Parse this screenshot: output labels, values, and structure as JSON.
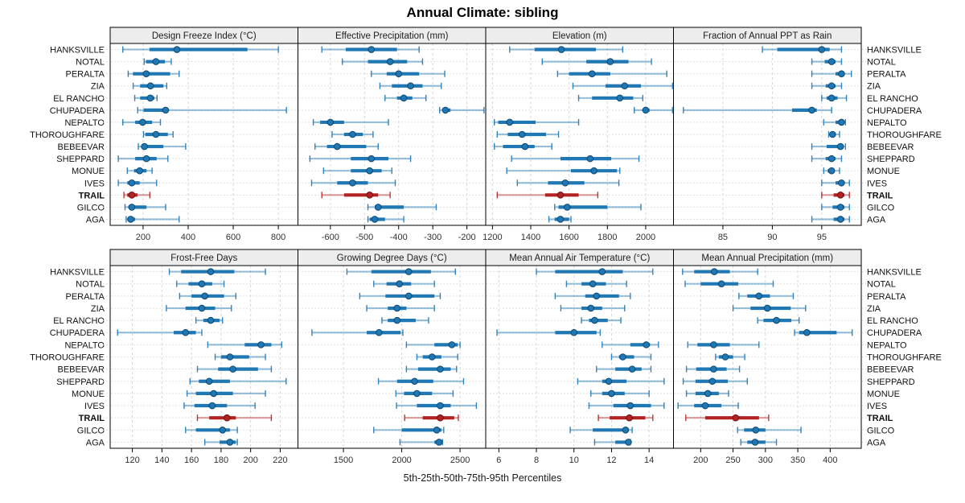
{
  "title": "Annual Climate: sibling",
  "caption": "5th-25th-50th-75th-95th Percentiles",
  "percentile_labels": [
    "5th",
    "25th",
    "50th",
    "75th",
    "95th"
  ],
  "stations": [
    "HANKSVILLE",
    "NOTAL",
    "PERALTA",
    "ZIA",
    "EL RANCHO",
    "CHUPADERA",
    "NEPALTO",
    "THOROUGHFARE",
    "BEBEEVAR",
    "SHEPPARD",
    "MONUE",
    "IVES",
    "TRAIL",
    "GILCO",
    "AGA"
  ],
  "highlight_station": "TRAIL",
  "colors": {
    "series_blue": "#1f77b4",
    "series_blue_light": "rgba(31,119,180,0.45)",
    "series_blue_dark": "#0d476f",
    "series_red": "#b22222",
    "series_red_light": "rgba(178,34,34,0.45)",
    "series_red_dark": "#6e1212",
    "strip_bg": "#ededed",
    "panel_border": "#000000",
    "grid": "#d6d6d6",
    "tick_text": "#303030",
    "label_text": "#111111"
  },
  "chart_data": [
    {
      "type": "interval-dotplot",
      "title": "Design Freeze Index (°C)",
      "row": 0,
      "col": 0,
      "xlim": [
        54,
        887
      ],
      "ticks": [
        200,
        400,
        600,
        800
      ],
      "values": [
        [
          110,
          228,
          350,
          663,
          800
        ],
        [
          205,
          213,
          257,
          297,
          325
        ],
        [
          134,
          155,
          214,
          320,
          360
        ],
        [
          156,
          187,
          233,
          290,
          305
        ],
        [
          163,
          187,
          232,
          250,
          262
        ],
        [
          176,
          202,
          300,
          312,
          836
        ],
        [
          110,
          165,
          198,
          240,
          277
        ],
        [
          202,
          210,
          257,
          310,
          333
        ],
        [
          179,
          192,
          206,
          290,
          389
        ],
        [
          90,
          165,
          215,
          260,
          310
        ],
        [
          130,
          160,
          185,
          215,
          240
        ],
        [
          90,
          130,
          150,
          185,
          260
        ],
        [
          115,
          130,
          150,
          175,
          230
        ],
        [
          120,
          135,
          150,
          215,
          300
        ],
        [
          125,
          132,
          145,
          165,
          360
        ]
      ]
    },
    {
      "type": "interval-dotplot",
      "title": "Effective Precipitation (mm)",
      "row": 0,
      "col": 1,
      "xlim": [
        -695,
        -145
      ],
      "ticks": [
        -600,
        -500,
        -400,
        -300,
        -200
      ],
      "values": [
        [
          -625,
          -555,
          -480,
          -405,
          -340
        ],
        [
          -565,
          -490,
          -425,
          -375,
          -330
        ],
        [
          -480,
          -435,
          -400,
          -340,
          -265
        ],
        [
          -455,
          -420,
          -365,
          -330,
          -275
        ],
        [
          -440,
          -405,
          -385,
          -360,
          -320
        ],
        [
          -280,
          -272,
          -263,
          -248,
          -150
        ],
        [
          -650,
          -630,
          -600,
          -560,
          -430
        ],
        [
          -595,
          -560,
          -535,
          -505,
          -475
        ],
        [
          -645,
          -610,
          -580,
          -495,
          -460
        ],
        [
          -660,
          -540,
          -480,
          -430,
          -365
        ],
        [
          -620,
          -540,
          -485,
          -450,
          -420
        ],
        [
          -655,
          -580,
          -535,
          -490,
          -410
        ],
        [
          -625,
          -560,
          -485,
          -460,
          -425
        ],
        [
          -490,
          -470,
          -460,
          -385,
          -290
        ],
        [
          -490,
          -485,
          -470,
          -440,
          -385
        ]
      ]
    },
    {
      "type": "interval-dotplot",
      "title": "Elevation (m)",
      "row": 0,
      "col": 2,
      "xlim": [
        1165,
        2145
      ],
      "ticks": [
        1200,
        1400,
        1600,
        1800,
        2000
      ],
      "values": [
        [
          1290,
          1420,
          1560,
          1740,
          1880
        ],
        [
          1460,
          1690,
          1815,
          1910,
          2030
        ],
        [
          1540,
          1600,
          1720,
          1815,
          2110
        ],
        [
          1620,
          1790,
          1890,
          1975,
          2140
        ],
        [
          1650,
          1720,
          1865,
          1935,
          1985
        ],
        [
          1940,
          1985,
          2000,
          2020,
          2140
        ],
        [
          1210,
          1230,
          1290,
          1425,
          1650
        ],
        [
          1225,
          1280,
          1355,
          1480,
          1545
        ],
        [
          1210,
          1255,
          1370,
          1420,
          1510
        ],
        [
          1300,
          1555,
          1710,
          1820,
          1965
        ],
        [
          1275,
          1610,
          1730,
          1850,
          1865
        ],
        [
          1330,
          1490,
          1580,
          1680,
          1860
        ],
        [
          1225,
          1475,
          1555,
          1650,
          1750
        ],
        [
          1525,
          1545,
          1590,
          1800,
          1975
        ],
        [
          1495,
          1525,
          1555,
          1600,
          1610
        ]
      ]
    },
    {
      "type": "interval-dotplot",
      "title": "Fraction of Annual PPT as Rain",
      "row": 0,
      "col": 3,
      "xlim": [
        80,
        99
      ],
      "ticks": [
        85,
        90,
        95
      ],
      "values": [
        [
          89,
          90.5,
          95,
          95.8,
          97
        ],
        [
          94,
          95.3,
          96,
          96.4,
          97
        ],
        [
          94,
          96.4,
          97,
          97.3,
          98
        ],
        [
          94,
          95.4,
          96,
          96.4,
          97
        ],
        [
          95,
          95.5,
          96,
          96.6,
          97.5
        ],
        [
          81,
          92,
          94,
          94.5,
          96
        ],
        [
          95.2,
          96.4,
          97,
          97.2,
          97.4
        ],
        [
          95.7,
          95.9,
          96.1,
          96.4,
          96.8
        ],
        [
          94,
          95.5,
          96.9,
          97.1,
          97.4
        ],
        [
          94,
          95.4,
          96,
          96.4,
          97
        ],
        [
          95.2,
          95.6,
          96,
          96.3,
          96.8
        ],
        [
          95,
          96.4,
          97,
          97.3,
          97.8
        ],
        [
          95,
          96.2,
          96.9,
          97.3,
          97.8
        ],
        [
          95,
          96.1,
          96.9,
          97.3,
          97.8
        ],
        [
          94,
          96.2,
          96.9,
          97.3,
          97.8
        ]
      ]
    },
    {
      "type": "interval-dotplot",
      "title": "Frost-Free Days",
      "row": 1,
      "col": 0,
      "xlim": [
        105,
        232
      ],
      "ticks": [
        120,
        140,
        160,
        180,
        200,
        220
      ],
      "values": [
        [
          145,
          153,
          173,
          189,
          210
        ],
        [
          150,
          158,
          167,
          174,
          182
        ],
        [
          152,
          160,
          169,
          182,
          190
        ],
        [
          143,
          156,
          167,
          176,
          187
        ],
        [
          163,
          168,
          173,
          179,
          181
        ],
        [
          110,
          148,
          156,
          163,
          167
        ],
        [
          171,
          196,
          207,
          214,
          221
        ],
        [
          176,
          180,
          186,
          199,
          210
        ],
        [
          164,
          178,
          188,
          205,
          214
        ],
        [
          159,
          165,
          172,
          186,
          224
        ],
        [
          157,
          163,
          175,
          188,
          210
        ],
        [
          155,
          162,
          174,
          184,
          203
        ],
        [
          164,
          172,
          184,
          190,
          214
        ],
        [
          156,
          163,
          181,
          186,
          191
        ],
        [
          169,
          179,
          186,
          190,
          191
        ]
      ]
    },
    {
      "type": "interval-dotplot",
      "title": "Growing Degree Days (°C)",
      "row": 1,
      "col": 1,
      "xlim": [
        1110,
        2720
      ],
      "ticks": [
        1500,
        2000,
        2500
      ],
      "values": [
        [
          1530,
          1740,
          2060,
          2250,
          2460
        ],
        [
          1760,
          1870,
          1980,
          2080,
          2280
        ],
        [
          1640,
          1860,
          2060,
          2280,
          2330
        ],
        [
          1700,
          1880,
          1960,
          2040,
          2280
        ],
        [
          1830,
          1880,
          1960,
          2120,
          2230
        ],
        [
          1230,
          1700,
          1805,
          1990,
          2010
        ],
        [
          2040,
          2280,
          2430,
          2480,
          2500
        ],
        [
          2130,
          2180,
          2260,
          2340,
          2480
        ],
        [
          2040,
          2140,
          2330,
          2420,
          2470
        ],
        [
          1800,
          1960,
          2110,
          2270,
          2530
        ],
        [
          1950,
          2020,
          2130,
          2260,
          2440
        ],
        [
          1955,
          2130,
          2330,
          2420,
          2640
        ],
        [
          2025,
          2180,
          2330,
          2450,
          2485
        ],
        [
          1760,
          2000,
          2300,
          2340,
          2360
        ],
        [
          1985,
          2280,
          2320,
          2340,
          2350
        ]
      ]
    },
    {
      "type": "interval-dotplot",
      "title": "Mean Annual Air Temperature (°C)",
      "row": 1,
      "col": 2,
      "xlim": [
        5.3,
        15.3
      ],
      "ticks": [
        6,
        8,
        10,
        12,
        14
      ],
      "values": [
        [
          8.0,
          9.0,
          11.5,
          12.6,
          14.2
        ],
        [
          9.6,
          10.4,
          11.0,
          11.7,
          12.8
        ],
        [
          9.0,
          10.6,
          11.2,
          12.4,
          13.0
        ],
        [
          9.3,
          10.4,
          10.9,
          11.5,
          12.7
        ],
        [
          10.4,
          10.8,
          11.1,
          11.8,
          12.5
        ],
        [
          5.9,
          9.0,
          10.0,
          11.2,
          11.4
        ],
        [
          11.5,
          13.0,
          13.85,
          14.05,
          14.5
        ],
        [
          12.0,
          12.4,
          12.6,
          13.2,
          14.1
        ],
        [
          11.2,
          12.2,
          13.1,
          13.6,
          14.1
        ],
        [
          10.2,
          11.5,
          11.85,
          12.8,
          14.8
        ],
        [
          10.9,
          11.5,
          12.0,
          12.7,
          14.0
        ],
        [
          10.8,
          12.1,
          13.0,
          14.1,
          14.8
        ],
        [
          11.3,
          11.9,
          12.95,
          13.8,
          14.2
        ],
        [
          9.8,
          11.0,
          12.75,
          12.9,
          13.1
        ],
        [
          11.1,
          12.2,
          12.9,
          12.95,
          13.0
        ]
      ]
    },
    {
      "type": "interval-dotplot",
      "title": "Mean Annual Precipitation (mm)",
      "row": 1,
      "col": 3,
      "xlim": [
        158,
        448
      ],
      "ticks": [
        200,
        250,
        300,
        350,
        400
      ],
      "values": [
        [
          172,
          190,
          221,
          245,
          288
        ],
        [
          176,
          200,
          232,
          258,
          312
        ],
        [
          259,
          272,
          290,
          307,
          343
        ],
        [
          250,
          277,
          303,
          339,
          362
        ],
        [
          288,
          297,
          317,
          340,
          352
        ],
        [
          345,
          352,
          364,
          410,
          434
        ],
        [
          180,
          195,
          220,
          245,
          290
        ],
        [
          223,
          228,
          238,
          250,
          268
        ],
        [
          178,
          193,
          220,
          240,
          260
        ],
        [
          173,
          192,
          218,
          242,
          272
        ],
        [
          178,
          192,
          211,
          228,
          243
        ],
        [
          165,
          190,
          207,
          232,
          258
        ],
        [
          177,
          207,
          254,
          290,
          305
        ],
        [
          257,
          267,
          285,
          300,
          355
        ],
        [
          262,
          272,
          284,
          300,
          317
        ]
      ]
    }
  ]
}
